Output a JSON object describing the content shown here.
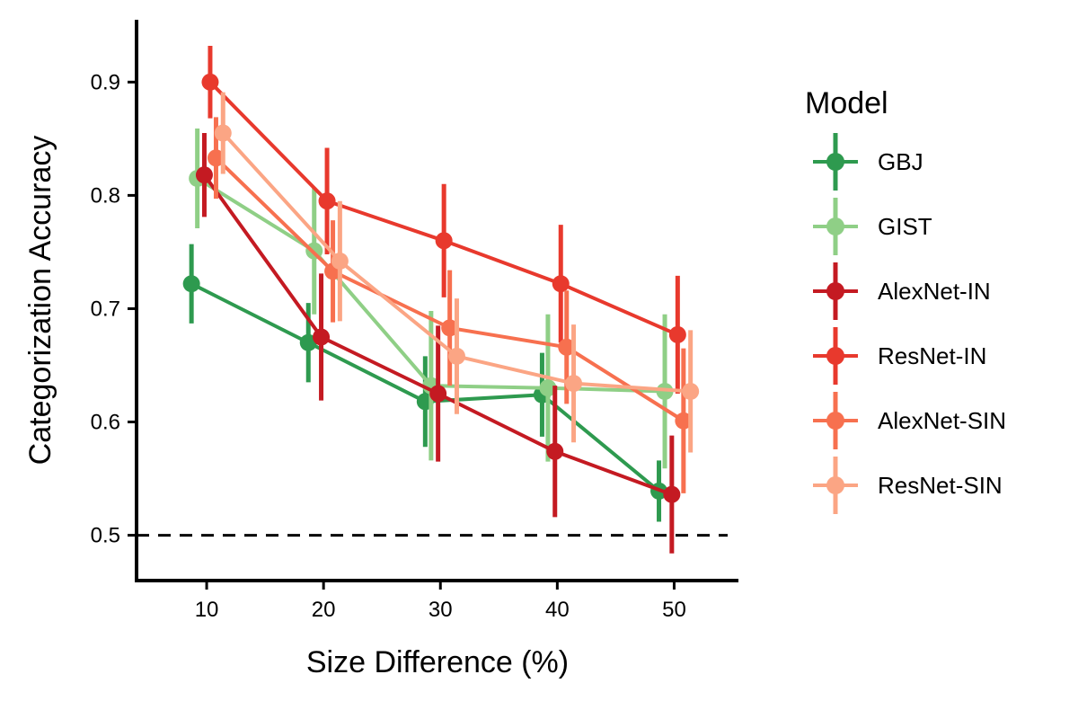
{
  "chart_data": {
    "type": "line",
    "xlabel": "Size Difference (%)",
    "ylabel": "Categorization Accuracy",
    "x": [
      10,
      20,
      30,
      40,
      50
    ],
    "xlim": [
      4,
      55.5
    ],
    "ylim": [
      0.46,
      0.955
    ],
    "xticks": [
      10,
      20,
      30,
      40,
      50
    ],
    "yticks": [
      0.5,
      0.6,
      0.7,
      0.8,
      0.9
    ],
    "ytick_labels": [
      "0.5",
      "0.6",
      "0.7",
      "0.8",
      "0.9"
    ],
    "reference_line": {
      "y": 0.5,
      "style": "dashed"
    },
    "grid": false,
    "legend": {
      "title": "Model",
      "position": "right"
    },
    "series": [
      {
        "name": "GBJ",
        "color": "#2e9a4f",
        "dodge": -1.3,
        "values": [
          0.722,
          0.67,
          0.618,
          0.624,
          0.539
        ],
        "err": [
          0.035,
          0.035,
          0.04,
          0.037,
          0.027
        ]
      },
      {
        "name": "GIST",
        "color": "#8fcf86",
        "dodge": -0.8,
        "values": [
          0.815,
          0.751,
          0.632,
          0.63,
          0.627
        ],
        "err": [
          0.044,
          0.056,
          0.066,
          0.065,
          0.068
        ]
      },
      {
        "name": "AlexNet-IN",
        "color": "#c41a22",
        "dodge": -0.2,
        "values": [
          0.818,
          0.675,
          0.625,
          0.574,
          0.536
        ],
        "err": [
          0.037,
          0.056,
          0.06,
          0.058,
          0.052
        ]
      },
      {
        "name": "ResNet-IN",
        "color": "#e8392d",
        "dodge": 0.3,
        "values": [
          0.9,
          0.795,
          0.76,
          0.722,
          0.677
        ],
        "err": [
          0.032,
          0.047,
          0.05,
          0.052,
          0.052
        ]
      },
      {
        "name": "AlexNet-SIN",
        "color": "#f7704f",
        "dodge": 0.8,
        "values": [
          0.833,
          0.733,
          0.683,
          0.666,
          0.601
        ],
        "err": [
          0.036,
          0.045,
          0.051,
          0.05,
          0.064
        ]
      },
      {
        "name": "ResNet-SIN",
        "color": "#fba584",
        "dodge": 1.4,
        "values": [
          0.855,
          0.742,
          0.658,
          0.634,
          0.627
        ],
        "err": [
          0.036,
          0.053,
          0.051,
          0.052,
          0.054
        ]
      }
    ]
  }
}
